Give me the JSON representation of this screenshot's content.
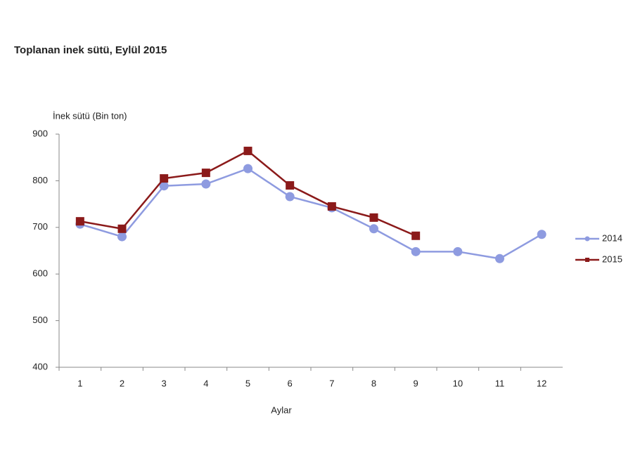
{
  "chart_data": {
    "type": "line",
    "title": "Toplanan inek sütü, Eylül 2015",
    "y_label": "İnek sütü (Bin ton)",
    "x_label": "Aylar",
    "categories": [
      "1",
      "2",
      "3",
      "4",
      "5",
      "6",
      "7",
      "8",
      "9",
      "10",
      "11",
      "12"
    ],
    "series": [
      {
        "name": "2014",
        "color": "#8e9be0",
        "marker": "circle",
        "values": [
          707,
          680,
          789,
          793,
          826,
          766,
          742,
          697,
          648,
          648,
          633,
          685
        ]
      },
      {
        "name": "2015",
        "color": "#8b1a1a",
        "marker": "square",
        "values": [
          713,
          697,
          805,
          817,
          864,
          790,
          745,
          721,
          682,
          null,
          null,
          null
        ]
      }
    ],
    "ylim": [
      400,
      900
    ],
    "yticks": [
      400,
      500,
      600,
      700,
      800,
      900
    ],
    "grid": false,
    "legend": "right"
  }
}
